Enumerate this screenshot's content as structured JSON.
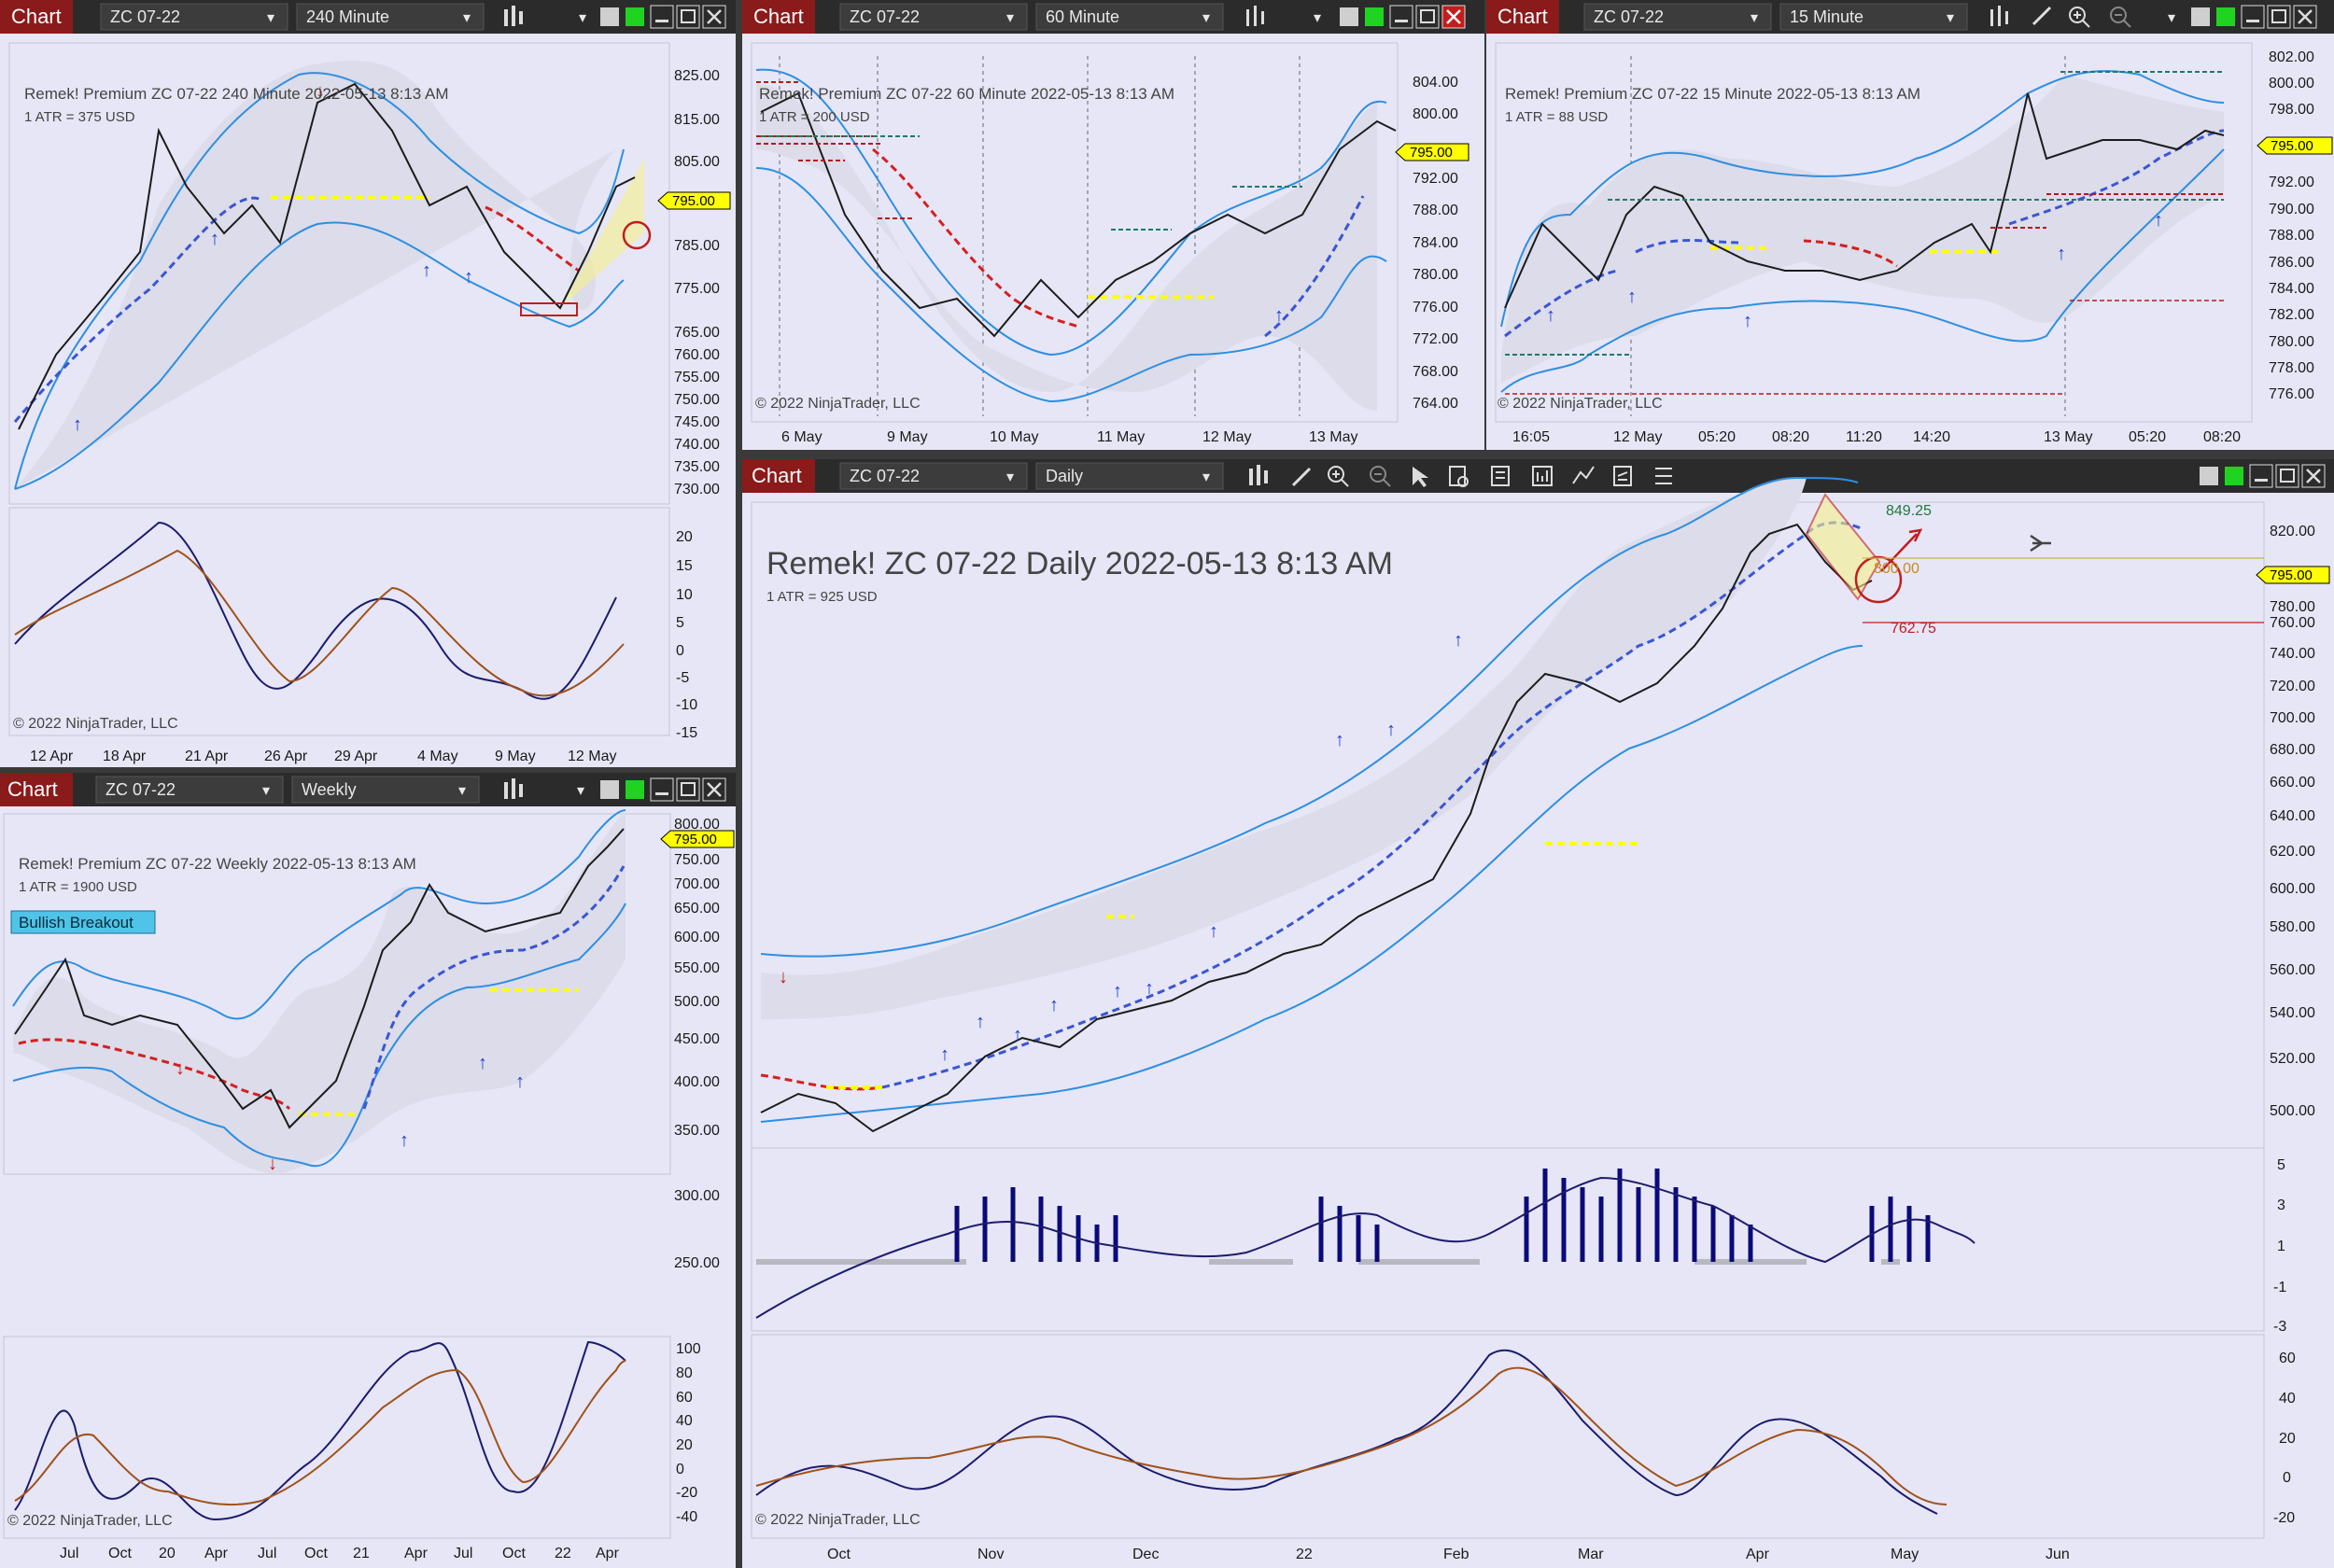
{
  "common": {
    "chart_tab": "Chart",
    "instrument": "ZC 07-22",
    "copyright": "© 2022 NinjaTrader, LLC",
    "price_tag": "795.00"
  },
  "windows": [
    {
      "id": "w240",
      "timeframe": "240 Minute",
      "header": "Remek!  Premium  ZC 07-22  240 Minute  2022-05-13 8:13 AM",
      "atr": "1 ATR = 375 USD",
      "price_ticks": [
        "825.00",
        "815.00",
        "805.00",
        "795.00",
        "785.00",
        "775.00",
        "765.00",
        "760.00",
        "755.00",
        "750.00",
        "745.00",
        "740.00",
        "735.00",
        "730.00"
      ],
      "ind_ticks": [
        "20",
        "15",
        "10",
        "5",
        "0",
        "-5",
        "-10",
        "-15"
      ],
      "x_ticks": [
        "12 Apr",
        "18 Apr",
        "21 Apr",
        "26 Apr",
        "29 Apr",
        "4 May",
        "9 May",
        "12 May"
      ]
    },
    {
      "id": "w60",
      "timeframe": "60 Minute",
      "header": "Remek!  Premium  ZC 07-22  60 Minute  2022-05-13 8:13 AM",
      "atr": "1 ATR = 200 USD",
      "price_ticks": [
        "804.00",
        "800.00",
        "796.00",
        "792.00",
        "788.00",
        "784.00",
        "780.00",
        "776.00",
        "772.00",
        "768.00",
        "764.00"
      ],
      "x_ticks": [
        "6 May",
        "9 May",
        "10 May",
        "11 May",
        "12 May",
        "13 May"
      ]
    },
    {
      "id": "w15",
      "timeframe": "15 Minute",
      "header": "Remek!  Premium  ZC 07-22  15 Minute  2022-05-13 8:13 AM",
      "atr": "1 ATR = 88 USD",
      "price_ticks": [
        "802.00",
        "800.00",
        "798.00",
        "796.00",
        "794.00",
        "792.00",
        "790.00",
        "788.00",
        "786.00",
        "784.00",
        "782.00",
        "780.00",
        "778.00",
        "776.00"
      ],
      "x_ticks": [
        "16:05",
        "12 May",
        "05:20",
        "08:20",
        "11:20",
        "14:20",
        "13 May",
        "05:20",
        "08:20"
      ]
    },
    {
      "id": "wWeekly",
      "timeframe": "Weekly",
      "header": "Remek!  Premium  ZC 07-22  Weekly  2022-05-13 8:13 AM",
      "atr": "1 ATR = 1900 USD",
      "badge": "Bullish Breakout",
      "price_ticks": [
        "800.00",
        "750.00",
        "700.00",
        "650.00",
        "600.00",
        "550.00",
        "500.00",
        "450.00",
        "400.00",
        "350.00",
        "300.00",
        "250.00"
      ],
      "ind_ticks": [
        "100",
        "80",
        "60",
        "40",
        "20",
        "0",
        "-20",
        "-40"
      ],
      "x_ticks": [
        "Jul",
        "Oct",
        "20",
        "Apr",
        "Jul",
        "Oct",
        "21",
        "Apr",
        "Jul",
        "Oct",
        "22",
        "Apr"
      ]
    },
    {
      "id": "wDaily",
      "timeframe": "Daily",
      "header": "Remek!  ZC 07-22  Daily  2022-05-13 8:13 AM",
      "atr": "1 ATR = 925 USD",
      "target_label": "849.25",
      "entry_label": "800.00",
      "stop_label": "762.75",
      "price_ticks": [
        "820.00",
        "800.00",
        "780.00",
        "760.00",
        "740.00",
        "720.00",
        "700.00",
        "680.00",
        "660.00",
        "640.00",
        "620.00",
        "600.00",
        "580.00",
        "560.00",
        "540.00",
        "520.00",
        "500.00"
      ],
      "hist_ticks": [
        "5",
        "3",
        "1",
        "-1",
        "-3"
      ],
      "ind_ticks": [
        "60",
        "40",
        "20",
        "0",
        "-20"
      ],
      "x_ticks": [
        "Oct",
        "Nov",
        "Dec",
        "22",
        "Feb",
        "Mar",
        "Apr",
        "May",
        "Jun"
      ]
    }
  ],
  "colors": {
    "chart_bg": "#e6e6f7",
    "toolbar": "#2b2b2b",
    "chart_tab": "#8b1a1a",
    "band": "#2e8fe0",
    "trail_bull": "#3a56d4",
    "trail_bear": "#d42020",
    "osc_fast": "#1c1c6e",
    "osc_slow": "#a0521a",
    "price_tag": "#ffff00",
    "bull_candle": "#1f7a3a",
    "bear_candle": "#222222"
  }
}
